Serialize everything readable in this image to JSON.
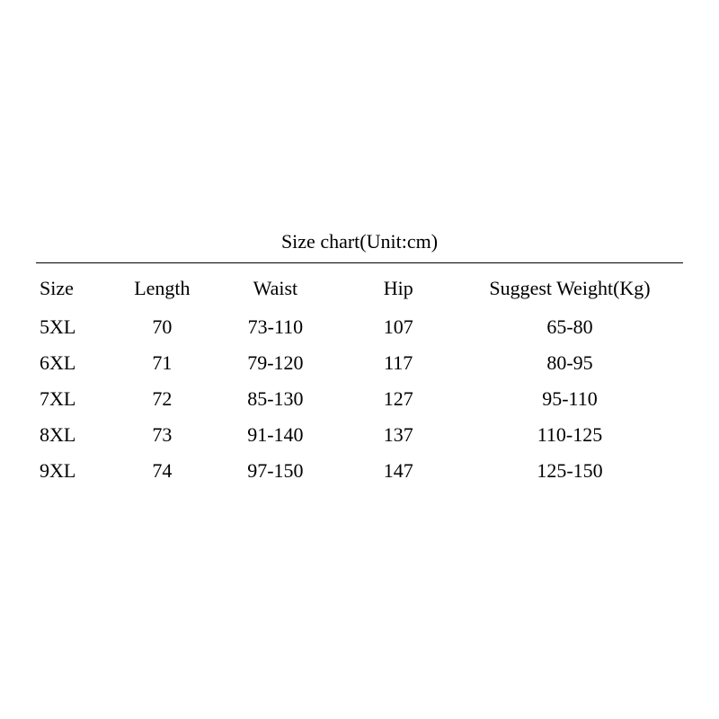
{
  "table": {
    "title": "Size chart(Unit:cm)",
    "columns": [
      "Size",
      "Length",
      "Waist",
      "Hip",
      "Suggest Weight(Kg)"
    ],
    "rows": [
      [
        "5XL",
        "70",
        "73-110",
        "107",
        "65-80"
      ],
      [
        "6XL",
        "71",
        "79-120",
        "117",
        "80-95"
      ],
      [
        "7XL",
        "72",
        "85-130",
        "127",
        "95-110"
      ],
      [
        "8XL",
        "73",
        "91-140",
        "137",
        "110-125"
      ],
      [
        "9XL",
        "74",
        "97-150",
        "147",
        "125-150"
      ]
    ],
    "background_color": "#ffffff",
    "text_color": "#000000",
    "rule_color": "#000000",
    "font_family": "Times New Roman",
    "title_fontsize": 22,
    "cell_fontsize": 22
  }
}
